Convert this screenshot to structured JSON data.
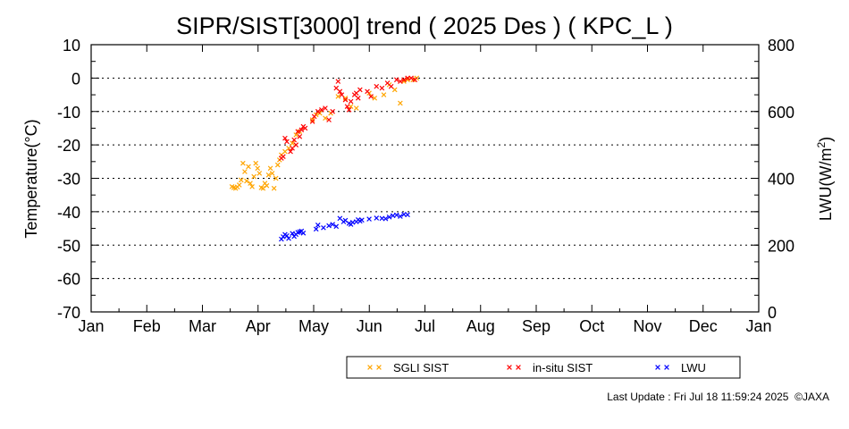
{
  "chart_data": {
    "type": "scatter",
    "title": "SIPR/SIST[3000] trend ( 2025 Des ) ( KPC_L )",
    "ylabel": "Temperature(°C)",
    "y2label_main": "LWU(W/m",
    "y2label_sup": "2",
    "y2label_end": ")",
    "ylim": [
      -70,
      10
    ],
    "y2lim": [
      0,
      800
    ],
    "yticks": [
      "10",
      "0",
      "-10",
      "-20",
      "-30",
      "-40",
      "-50",
      "-60",
      "-70"
    ],
    "y2ticks": [
      "800",
      "600",
      "400",
      "200",
      "0"
    ],
    "months": [
      "Jan",
      "Feb",
      "Mar",
      "Apr",
      "May",
      "Jun",
      "Jul",
      "Aug",
      "Sep",
      "Oct",
      "Nov",
      "Dec",
      "Jan"
    ],
    "grid": "horizontal dotted",
    "legend_position": "bottom-right",
    "series": [
      {
        "name": "SGLI SIST",
        "color": "#ffa500",
        "axis": "left",
        "points": [
          [
            "2025-03-19",
            -32.5
          ],
          [
            "2025-03-20",
            -32.8
          ],
          [
            "2025-03-21",
            -33.0
          ],
          [
            "2025-03-22",
            -32.6
          ],
          [
            "2025-03-23",
            -32.0
          ],
          [
            "2025-03-24",
            -30.5
          ],
          [
            "2025-03-25",
            -25.5
          ],
          [
            "2025-03-26",
            -28.0
          ],
          [
            "2025-03-27",
            -30.8
          ],
          [
            "2025-03-28",
            -26.5
          ],
          [
            "2025-03-29",
            -31.5
          ],
          [
            "2025-03-30",
            -32.5
          ],
          [
            "2025-03-31",
            -29.5
          ],
          [
            "2025-04-01",
            -25.5
          ],
          [
            "2025-04-02",
            -27.0
          ],
          [
            "2025-04-03",
            -28.5
          ],
          [
            "2025-04-04",
            -32.8
          ],
          [
            "2025-04-05",
            -33.0
          ],
          [
            "2025-04-06",
            -31.5
          ],
          [
            "2025-04-07",
            -32.2
          ],
          [
            "2025-04-08",
            -29.0
          ],
          [
            "2025-04-09",
            -27.0
          ],
          [
            "2025-04-10",
            -28.5
          ],
          [
            "2025-04-11",
            -33.0
          ],
          [
            "2025-04-12",
            -30.0
          ],
          [
            "2025-04-13",
            -26.0
          ],
          [
            "2025-04-14",
            -24.5
          ],
          [
            "2025-04-15",
            -23.0
          ],
          [
            "2025-04-17",
            -22.0
          ],
          [
            "2025-04-19",
            -21.0
          ],
          [
            "2025-04-21",
            -19.5
          ],
          [
            "2025-04-23",
            -17.0
          ],
          [
            "2025-04-25",
            -16.0
          ],
          [
            "2025-05-02",
            -12.5
          ],
          [
            "2025-05-04",
            -11.0
          ],
          [
            "2025-05-06",
            -10.5
          ],
          [
            "2025-05-09",
            -12.0
          ],
          [
            "2025-05-12",
            -10.5
          ],
          [
            "2025-05-16",
            -5.5
          ],
          [
            "2025-05-20",
            -6.0
          ],
          [
            "2025-05-23",
            -8.5
          ],
          [
            "2025-05-26",
            -9.0
          ],
          [
            "2025-06-02",
            -4.5
          ],
          [
            "2025-06-05",
            -6.0
          ],
          [
            "2025-06-10",
            -5.0
          ],
          [
            "2025-06-13",
            -2.0
          ],
          [
            "2025-06-16",
            -3.5
          ],
          [
            "2025-06-19",
            -7.5
          ],
          [
            "2025-06-21",
            -1.0
          ],
          [
            "2025-06-23",
            -0.5
          ],
          [
            "2025-06-26",
            -0.5
          ],
          [
            "2025-06-28",
            0.0
          ]
        ]
      },
      {
        "name": "in-situ SIST",
        "color": "#ff0000",
        "axis": "left",
        "points": [
          [
            "2025-04-15",
            -24.0
          ],
          [
            "2025-04-16",
            -23.5
          ],
          [
            "2025-04-17",
            -18.0
          ],
          [
            "2025-04-18",
            -19.0
          ],
          [
            "2025-04-20",
            -22.0
          ],
          [
            "2025-04-21",
            -21.0
          ],
          [
            "2025-04-22",
            -18.5
          ],
          [
            "2025-04-23",
            -20.0
          ],
          [
            "2025-04-24",
            -16.0
          ],
          [
            "2025-04-25",
            -17.5
          ],
          [
            "2025-04-26",
            -15.5
          ],
          [
            "2025-04-27",
            -14.5
          ],
          [
            "2025-04-28",
            -15.0
          ],
          [
            "2025-05-02",
            -13.0
          ],
          [
            "2025-05-03",
            -11.5
          ],
          [
            "2025-05-05",
            -10.0
          ],
          [
            "2025-05-07",
            -9.5
          ],
          [
            "2025-05-09",
            -9.0
          ],
          [
            "2025-05-11",
            -12.5
          ],
          [
            "2025-05-13",
            -10.0
          ],
          [
            "2025-05-15",
            -3.0
          ],
          [
            "2025-05-16",
            -1.0
          ],
          [
            "2025-05-17",
            -4.0
          ],
          [
            "2025-05-18",
            -5.0
          ],
          [
            "2025-05-20",
            -6.5
          ],
          [
            "2025-05-21",
            -8.5
          ],
          [
            "2025-05-22",
            -9.5
          ],
          [
            "2025-05-23",
            -7.0
          ],
          [
            "2025-05-25",
            -5.0
          ],
          [
            "2025-05-26",
            -4.5
          ],
          [
            "2025-05-27",
            -6.0
          ],
          [
            "2025-05-28",
            -3.5
          ],
          [
            "2025-06-01",
            -4.0
          ],
          [
            "2025-06-03",
            -5.5
          ],
          [
            "2025-06-06",
            -2.5
          ],
          [
            "2025-06-09",
            -3.0
          ],
          [
            "2025-06-12",
            -1.5
          ],
          [
            "2025-06-14",
            -2.5
          ],
          [
            "2025-06-17",
            -0.5
          ],
          [
            "2025-06-19",
            -1.0
          ],
          [
            "2025-06-21",
            -0.5
          ],
          [
            "2025-06-23",
            0.0
          ],
          [
            "2025-06-25",
            0.0
          ],
          [
            "2025-06-27",
            -0.5
          ]
        ]
      },
      {
        "name": "LWU",
        "color": "#0000ff",
        "axis": "right",
        "points": [
          [
            "2025-04-15",
            218
          ],
          [
            "2025-04-16",
            225
          ],
          [
            "2025-04-17",
            232
          ],
          [
            "2025-04-18",
            228
          ],
          [
            "2025-04-19",
            220
          ],
          [
            "2025-04-21",
            235
          ],
          [
            "2025-04-22",
            226
          ],
          [
            "2025-04-23",
            232
          ],
          [
            "2025-04-24",
            238
          ],
          [
            "2025-04-25",
            240
          ],
          [
            "2025-04-26",
            242
          ],
          [
            "2025-04-27",
            236
          ],
          [
            "2025-05-04",
            248
          ],
          [
            "2025-05-05",
            260
          ],
          [
            "2025-05-08",
            252
          ],
          [
            "2025-05-11",
            258
          ],
          [
            "2025-05-13",
            262
          ],
          [
            "2025-05-15",
            256
          ],
          [
            "2025-05-17",
            280
          ],
          [
            "2025-05-19",
            270
          ],
          [
            "2025-05-20",
            274
          ],
          [
            "2025-05-22",
            265
          ],
          [
            "2025-05-23",
            262
          ],
          [
            "2025-05-24",
            268
          ],
          [
            "2025-05-26",
            270
          ],
          [
            "2025-05-27",
            276
          ],
          [
            "2025-05-28",
            272
          ],
          [
            "2025-05-29",
            275
          ],
          [
            "2025-06-02",
            278
          ],
          [
            "2025-06-06",
            281
          ],
          [
            "2025-06-09",
            280
          ],
          [
            "2025-06-11",
            279
          ],
          [
            "2025-06-13",
            284
          ],
          [
            "2025-06-15",
            288
          ],
          [
            "2025-06-17",
            290
          ],
          [
            "2025-06-19",
            286
          ],
          [
            "2025-06-21",
            292
          ],
          [
            "2025-06-23",
            291
          ]
        ]
      }
    ]
  },
  "footer": {
    "last_update": "Last Update : Fri Jul 18 11:59:24 2025",
    "copyright": "©JAXA"
  }
}
